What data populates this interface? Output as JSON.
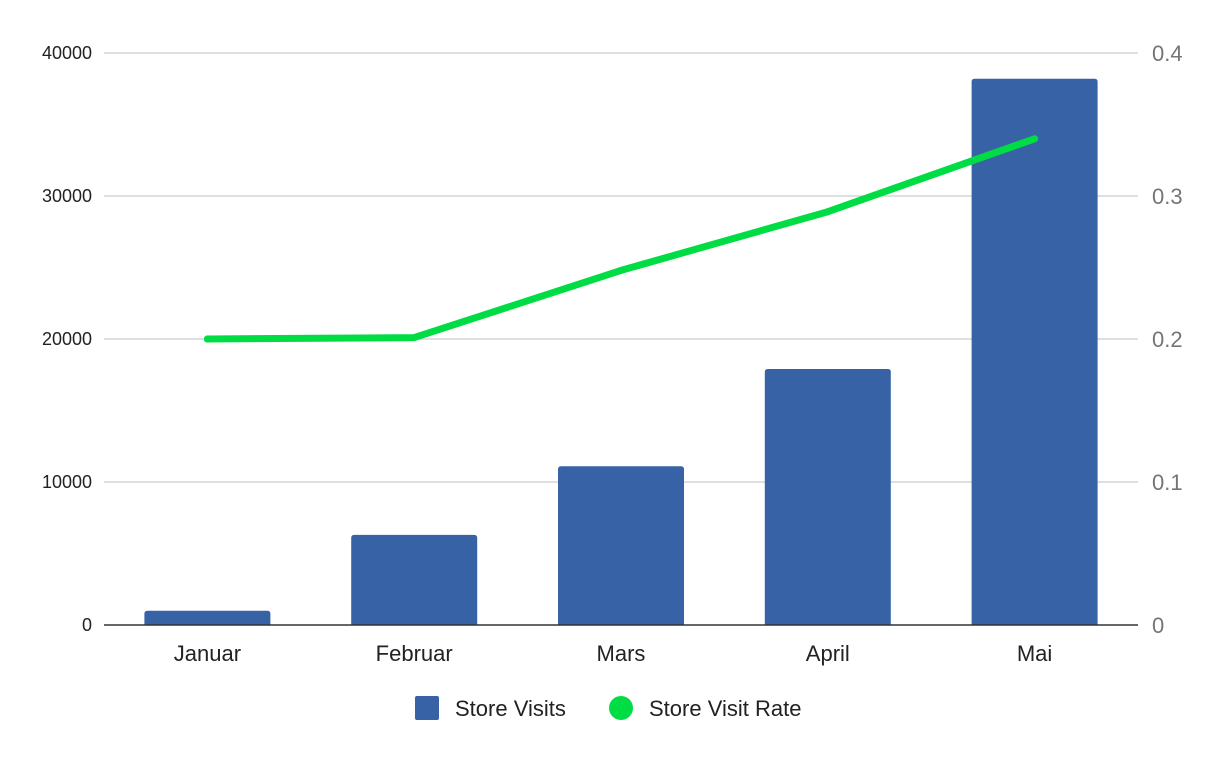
{
  "chart_data": {
    "type": "bar",
    "categories": [
      "Januar",
      "Februar",
      "Mars",
      "April",
      "Mai"
    ],
    "series": [
      {
        "name": "Store Visits",
        "type": "bar",
        "axis": "left",
        "color": "#3762a5",
        "values": [
          1000,
          6300,
          11100,
          17900,
          38200
        ]
      },
      {
        "name": "Store Visit Rate",
        "type": "line",
        "axis": "right",
        "color": "#00dd44",
        "values": [
          0.2,
          0.201,
          0.248,
          0.289,
          0.34
        ]
      }
    ],
    "y_left": {
      "range": [
        0,
        40000
      ],
      "ticks": [
        "0",
        "10000",
        "20000",
        "30000",
        "40000"
      ]
    },
    "y_right": {
      "range": [
        0,
        0.4
      ],
      "ticks": [
        "0",
        "0.1",
        "0.2",
        "0.3",
        "0.4"
      ]
    },
    "grid": true,
    "legend_position": "bottom"
  }
}
